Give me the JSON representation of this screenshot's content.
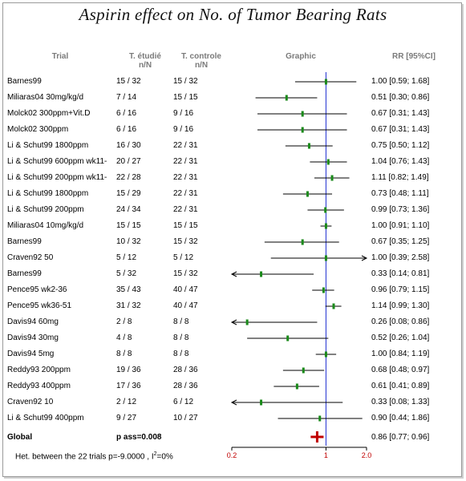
{
  "chart_data": {
    "type": "forest",
    "title": "Aspirin effect on No. of Tumor Bearing Rats",
    "columns": {
      "trial": "Trial",
      "t_etudie": "T. étudié",
      "t_etudie_sub": "n/N",
      "t_controle": "T. controle",
      "t_controle_sub": "n/N",
      "graphic": "Graphic",
      "rr": "RR [95%CI]"
    },
    "rows": [
      {
        "trial": "Barnes99",
        "treated": "15 / 32",
        "control": "15 / 32",
        "rr": 1.0,
        "lo": 0.59,
        "hi": 1.68,
        "rr_text": "1.00 [0.59; 1.68]"
      },
      {
        "trial": "Miliaras04 30mg/kg/d",
        "treated": "7 / 14",
        "control": "15 / 15",
        "rr": 0.51,
        "lo": 0.3,
        "hi": 0.86,
        "rr_text": "0.51 [0.30; 0.86]"
      },
      {
        "trial": "Molck02 300ppm+Vit.D",
        "treated": "6 / 16",
        "control": "9 / 16",
        "rr": 0.67,
        "lo": 0.31,
        "hi": 1.43,
        "rr_text": "0.67 [0.31; 1.43]"
      },
      {
        "trial": "Molck02 300ppm",
        "treated": "6 / 16",
        "control": "9 / 16",
        "rr": 0.67,
        "lo": 0.31,
        "hi": 1.43,
        "rr_text": "0.67 [0.31; 1.43]"
      },
      {
        "trial": "Li & Schut99 1800ppm",
        "treated": "16 / 30",
        "control": "22 / 31",
        "rr": 0.75,
        "lo": 0.5,
        "hi": 1.12,
        "rr_text": "0.75 [0.50; 1.12]"
      },
      {
        "trial": "Li & Schut99 600ppm wk11-",
        "treated": "20 / 27",
        "control": "22 / 31",
        "rr": 1.04,
        "lo": 0.76,
        "hi": 1.43,
        "rr_text": "1.04 [0.76; 1.43]"
      },
      {
        "trial": "Li & Schut99 200ppm wk11-",
        "treated": "22 / 28",
        "control": "22 / 31",
        "rr": 1.11,
        "lo": 0.82,
        "hi": 1.49,
        "rr_text": "1.11 [0.82; 1.49]"
      },
      {
        "trial": "Li & Schut99 1800ppm",
        "treated": "15 / 29",
        "control": "22 / 31",
        "rr": 0.73,
        "lo": 0.48,
        "hi": 1.11,
        "rr_text": "0.73 [0.48; 1.11]"
      },
      {
        "trial": "Li & Schut99 200ppm",
        "treated": "24 / 34",
        "control": "22 / 31",
        "rr": 0.99,
        "lo": 0.73,
        "hi": 1.36,
        "rr_text": "0.99 [0.73; 1.36]"
      },
      {
        "trial": "Miliaras04 10mg/kg/d",
        "treated": "15 / 15",
        "control": "15 / 15",
        "rr": 1.0,
        "lo": 0.91,
        "hi": 1.1,
        "rr_text": "1.00 [0.91; 1.10]"
      },
      {
        "trial": "Barnes99",
        "treated": "10 / 32",
        "control": "15 / 32",
        "rr": 0.67,
        "lo": 0.35,
        "hi": 1.25,
        "rr_text": "0.67 [0.35; 1.25]"
      },
      {
        "trial": "Craven92 50",
        "treated": "5 / 12",
        "control": "5 / 12",
        "rr": 1.0,
        "lo": 0.39,
        "hi": 2.58,
        "rr_text": "1.00 [0.39; 2.58]",
        "arrow_right": true
      },
      {
        "trial": "Barnes99",
        "treated": "5 / 32",
        "control": "15 / 32",
        "rr": 0.33,
        "lo": 0.14,
        "hi": 0.81,
        "rr_text": "0.33 [0.14; 0.81]",
        "arrow_left": true
      },
      {
        "trial": "Pence95 wk2-36",
        "treated": "35 / 43",
        "control": "40 / 47",
        "rr": 0.96,
        "lo": 0.79,
        "hi": 1.15,
        "rr_text": "0.96 [0.79; 1.15]"
      },
      {
        "trial": "Pence95 wk36-51",
        "treated": "31 / 32",
        "control": "40 / 47",
        "rr": 1.14,
        "lo": 0.99,
        "hi": 1.3,
        "rr_text": "1.14 [0.99; 1.30]"
      },
      {
        "trial": "Davis94 60mg",
        "treated": "2 / 8",
        "control": "8 / 8",
        "rr": 0.26,
        "lo": 0.08,
        "hi": 0.86,
        "rr_text": "0.26 [0.08; 0.86]",
        "arrow_left": true
      },
      {
        "trial": "Davis94 30mg",
        "treated": "4 / 8",
        "control": "8 / 8",
        "rr": 0.52,
        "lo": 0.26,
        "hi": 1.04,
        "rr_text": "0.52 [0.26; 1.04]"
      },
      {
        "trial": "Davis94 5mg",
        "treated": "8 / 8",
        "control": "8 / 8",
        "rr": 1.0,
        "lo": 0.84,
        "hi": 1.19,
        "rr_text": "1.00 [0.84; 1.19]"
      },
      {
        "trial": "Reddy93 200ppm",
        "treated": "19 / 36",
        "control": "28 / 36",
        "rr": 0.68,
        "lo": 0.48,
        "hi": 0.97,
        "rr_text": "0.68 [0.48; 0.97]"
      },
      {
        "trial": "Reddy93 400ppm",
        "treated": "17 / 36",
        "control": "28 / 36",
        "rr": 0.61,
        "lo": 0.41,
        "hi": 0.89,
        "rr_text": "0.61 [0.41; 0.89]"
      },
      {
        "trial": "Craven92 10",
        "treated": "2 / 12",
        "control": "6 / 12",
        "rr": 0.33,
        "lo": 0.08,
        "hi": 1.33,
        "rr_text": "0.33 [0.08; 1.33]",
        "arrow_left": true
      },
      {
        "trial": "Li & Schut99 400ppm",
        "treated": "9 / 27",
        "control": "10 / 27",
        "rr": 0.9,
        "lo": 0.44,
        "hi": 1.86,
        "rr_text": "0.90 [0.44; 1.86]"
      }
    ],
    "global": {
      "label": "Global",
      "p_text": "p ass=0.008",
      "rr": 0.86,
      "lo": 0.77,
      "hi": 0.96,
      "rr_text": "0.86 [0.77; 0.96]"
    },
    "heterogeneity": {
      "text": "Het. between the 22 trials p=-9.0000 , I",
      "sup": "2",
      "suffix": "=0%"
    },
    "x_axis": {
      "scale": "log",
      "ticks": [
        0.2,
        1,
        2.0
      ],
      "tick_labels": [
        "0.2",
        "1",
        "2.0"
      ],
      "xlim": [
        0.2,
        2.0
      ]
    },
    "colors": {
      "line": "#000000",
      "point": "#1a8a1a",
      "reference_line": "#1f2fd0",
      "global_marker": "#c00000",
      "axis_labels": "#c00000"
    }
  }
}
